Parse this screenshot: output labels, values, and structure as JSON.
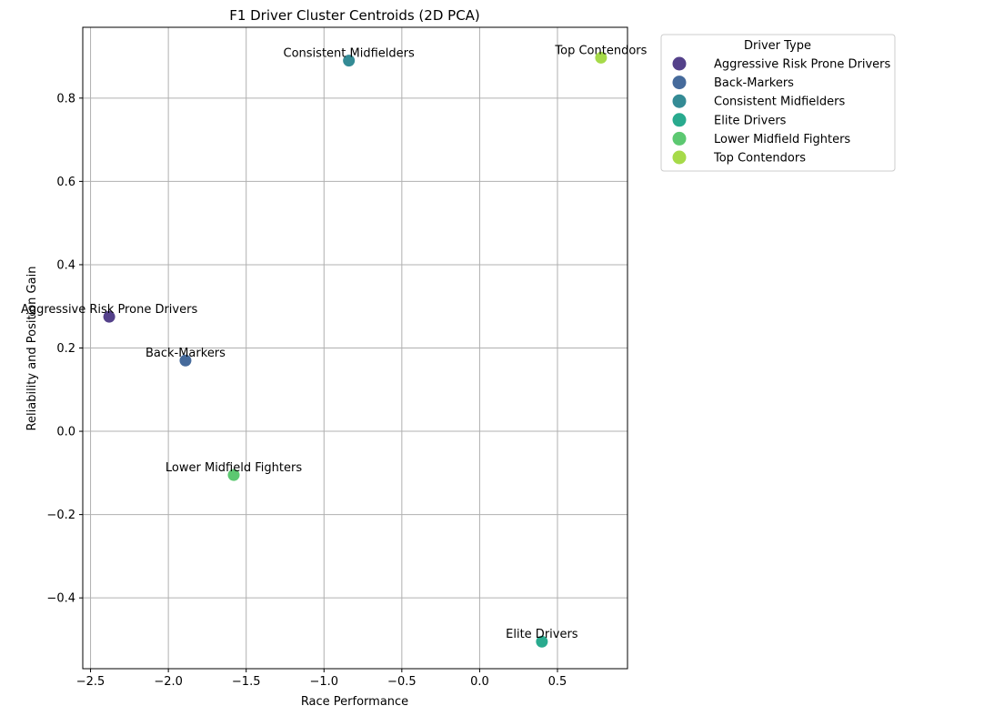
{
  "chart_data": {
    "type": "scatter",
    "title": "F1 Driver Cluster Centroids (2D PCA)",
    "xlabel": "Race Performance",
    "ylabel": "Reliability and Position Gain",
    "xlim": [
      -2.55,
      0.95
    ],
    "ylim": [
      -0.57,
      0.97
    ],
    "xticks": [
      -2.5,
      -2.0,
      -1.5,
      -1.0,
      -0.5,
      0.0,
      0.5
    ],
    "xtick_labels": [
      "−2.5",
      "−2.0",
      "−1.5",
      "−1.0",
      "−0.5",
      "0.0",
      "0.5"
    ],
    "yticks": [
      -0.4,
      -0.2,
      0.0,
      0.2,
      0.4,
      0.6,
      0.8
    ],
    "ytick_labels": [
      "−0.4",
      "−0.2",
      "0.0",
      "0.2",
      "0.4",
      "0.6",
      "0.8"
    ],
    "grid": true,
    "legend": {
      "title": "Driver Type",
      "placement": "outside right, top"
    },
    "points": [
      {
        "name": "Aggressive Risk Prone Drivers",
        "x": -2.38,
        "y": 0.275,
        "color": "#54418a"
      },
      {
        "name": "Back-Markers",
        "x": -1.89,
        "y": 0.17,
        "color": "#456a9b"
      },
      {
        "name": "Consistent Midfielders",
        "x": -0.84,
        "y": 0.89,
        "color": "#348b95"
      },
      {
        "name": "Elite Drivers",
        "x": 0.4,
        "y": -0.505,
        "color": "#29aa8e"
      },
      {
        "name": "Lower Midfield Fighters",
        "x": -1.58,
        "y": -0.105,
        "color": "#5cc871"
      },
      {
        "name": "Top Contendors",
        "x": 0.78,
        "y": 0.897,
        "color": "#a6da49"
      }
    ]
  }
}
